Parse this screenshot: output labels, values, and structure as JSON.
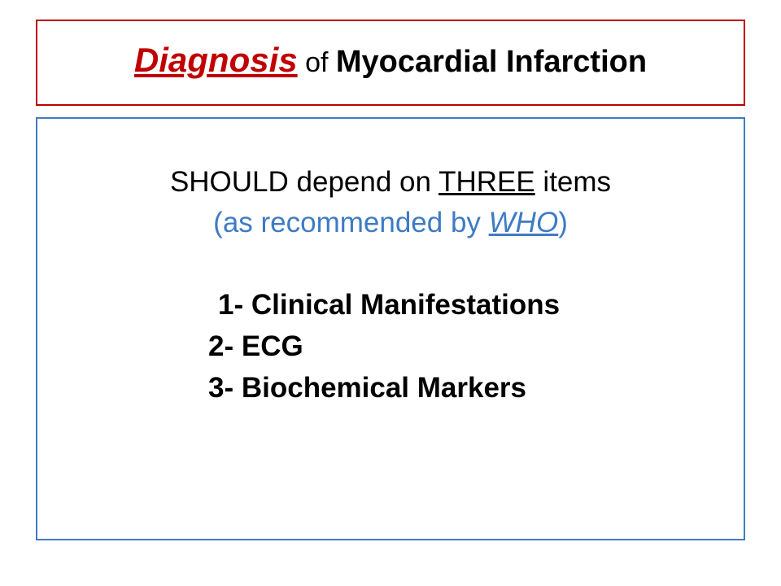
{
  "title": {
    "main": "Diagnosis",
    "of": " of ",
    "sub": "Myocardial Infarction"
  },
  "content": {
    "line1_pre": "SHOULD depend on ",
    "line1_u": "THREE",
    "line1_post": " items",
    "line2_open": "(",
    "line2_text": "as recommended by ",
    "line2_who": "WHO",
    "line2_close": ")",
    "item1": "1- Clinical Manifestations",
    "item2": "2-  ECG",
    "item3": "3-  Biochemical Markers"
  },
  "colors": {
    "red": "#c00000",
    "blue": "#3e7bc4",
    "black": "#000000",
    "bg": "#ffffff"
  },
  "typography": {
    "title_main_size": 42,
    "title_sub_size": 38,
    "body_size": 35,
    "font_family": "Arial"
  }
}
